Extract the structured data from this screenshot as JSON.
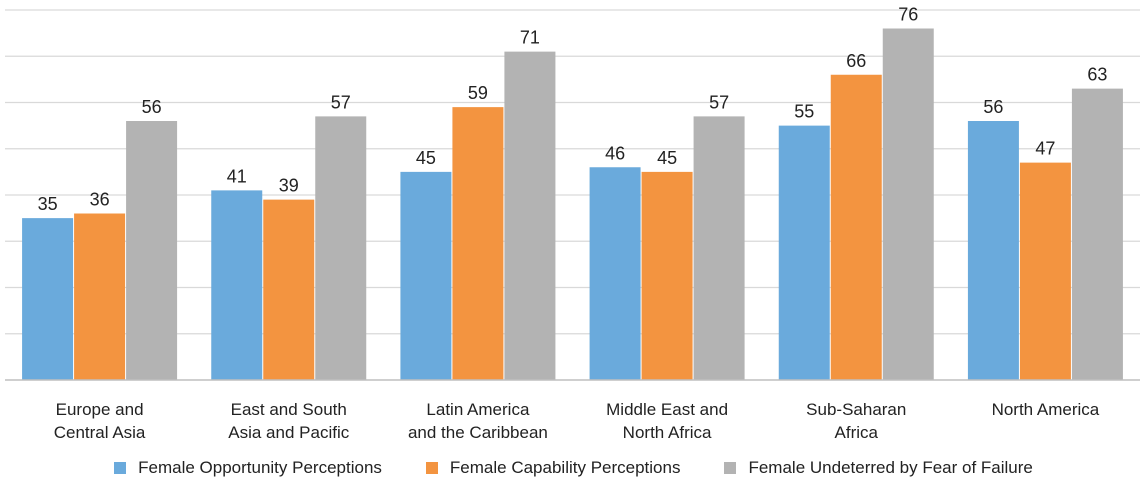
{
  "chart_data": {
    "type": "bar",
    "title": "",
    "xlabel": "",
    "ylabel": "",
    "ylim": [
      0,
      80
    ],
    "grid": true,
    "legend_position": "bottom",
    "categories": [
      [
        "Europe and",
        "Central Asia"
      ],
      [
        "East and South",
        "Asia and Pacific"
      ],
      [
        "Latin America",
        "and the Caribbean"
      ],
      [
        "Middle East and",
        "North Africa"
      ],
      [
        "Sub-Saharan",
        "Africa"
      ],
      [
        "North America"
      ]
    ],
    "series": [
      {
        "name": "Female Opportunity Perceptions",
        "color": "#6aaadc",
        "values": [
          35,
          41,
          45,
          46,
          55,
          56
        ]
      },
      {
        "name": "Female Capability Perceptions",
        "color": "#f39440",
        "values": [
          36,
          39,
          59,
          45,
          66,
          47
        ]
      },
      {
        "name": "Female Undeterred by Fear of Failure",
        "color": "#b3b3b3",
        "values": [
          56,
          57,
          71,
          57,
          76,
          63
        ]
      }
    ]
  }
}
